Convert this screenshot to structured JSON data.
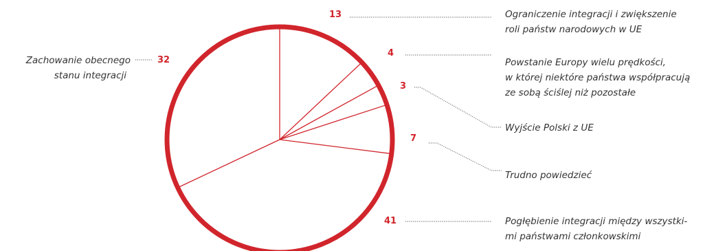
{
  "chart_data": {
    "type": "pie",
    "slices": [
      {
        "key": "ograniczenie",
        "value": 13,
        "label_lines": [
          "Ograniczenie integracji i zwiększenie",
          "roli państw narodowych w UE"
        ]
      },
      {
        "key": "predkosci",
        "value": 4,
        "label_lines": [
          "Powstanie Europy wielu prędkości,",
          "w której niektóre państwa współpracują",
          "ze sobą ściślej niż pozostałe"
        ]
      },
      {
        "key": "wyjscie",
        "value": 3,
        "label_lines": [
          "Wyjście Polski z UE"
        ]
      },
      {
        "key": "trudno",
        "value": 7,
        "label_lines": [
          "Trudno powiedzieć"
        ]
      },
      {
        "key": "poglebienie",
        "value": 41,
        "label_lines": [
          "Pogłębienie integracji między wszystki-",
          "mi państwami członkowskimi"
        ]
      },
      {
        "key": "zachowanie",
        "value": 32,
        "label_lines": [
          "Zachowanie obecnego",
          "stanu integracji"
        ]
      }
    ],
    "colors": {
      "accent": "#d1252c",
      "text": "#333333",
      "leader": "#555555"
    }
  }
}
